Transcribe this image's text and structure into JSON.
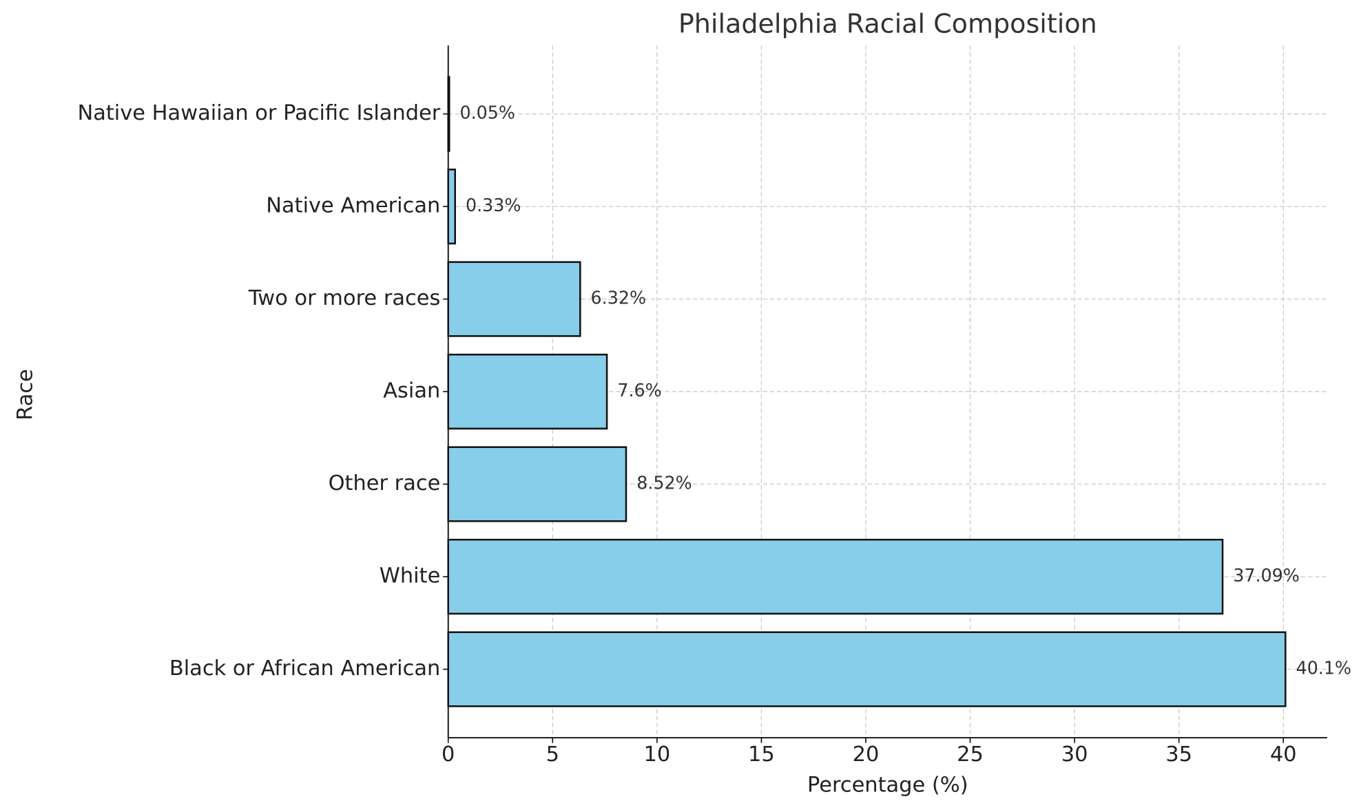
{
  "chart_data": {
    "type": "barh",
    "title": "Philadelphia Racial Composition",
    "x_label": "Percentage (%)",
    "y_label": "Race",
    "categories": [
      "Black or African American",
      "White",
      "Other race",
      "Asian",
      "Two or more races",
      "Native American",
      "Native Hawaiian or Pacific Islander"
    ],
    "values": [
      40.1,
      37.09,
      8.52,
      7.6,
      6.32,
      0.33,
      0.05
    ],
    "value_labels": [
      "40.1%",
      "37.09%",
      "8.52%",
      "7.6%",
      "6.32%",
      "0.33%",
      "0.05%"
    ],
    "color": "#87ceeb",
    "edge_color": "#111111",
    "xlim": [
      0,
      42.1
    ],
    "xticks": [
      0,
      5,
      10,
      15,
      20,
      25,
      30,
      35,
      40
    ],
    "grid": true
  }
}
